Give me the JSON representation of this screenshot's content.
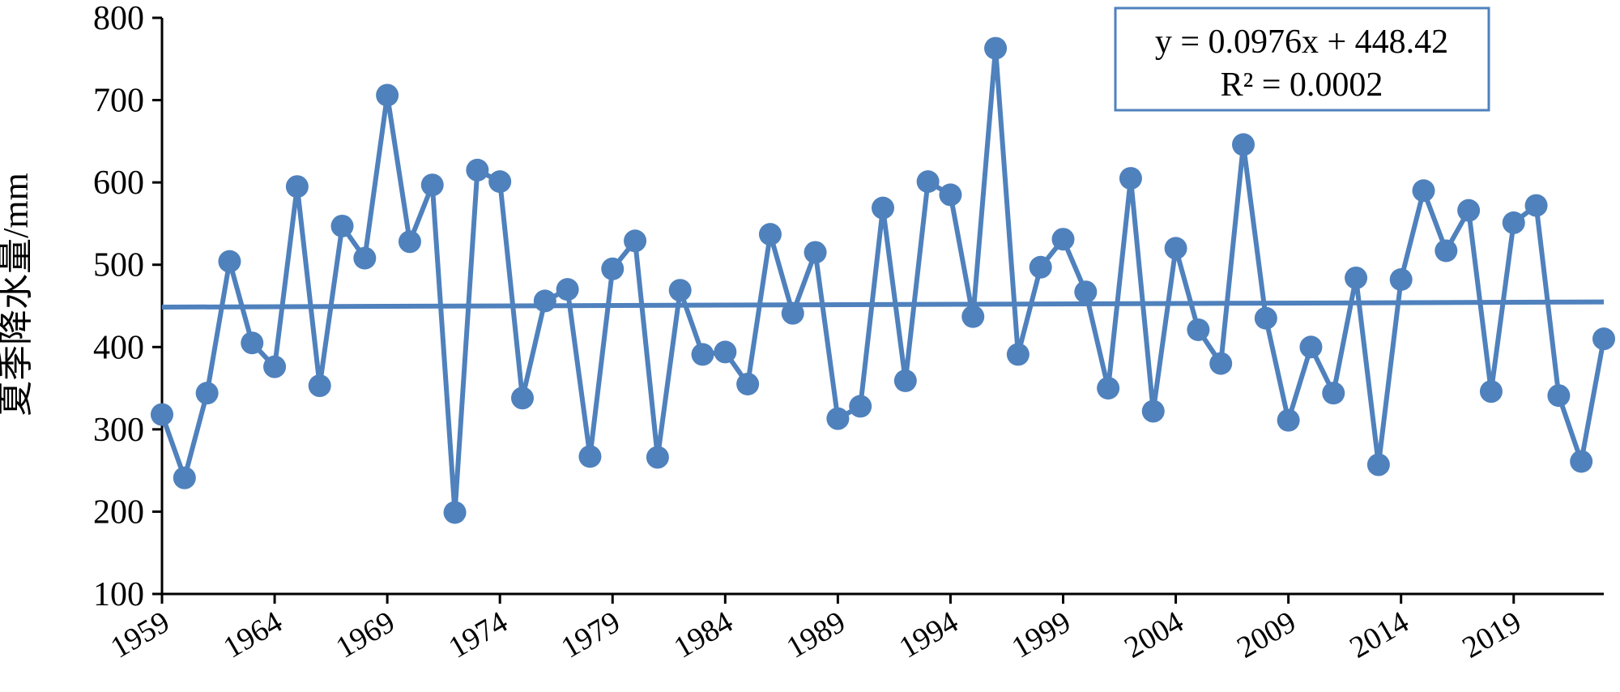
{
  "chart_data": {
    "type": "line",
    "ylabel": "夏季降水量/mm",
    "xlabel": "",
    "ylim": [
      100,
      800
    ],
    "yticks": [
      100,
      200,
      300,
      400,
      500,
      600,
      700,
      800
    ],
    "xlim": [
      1959,
      2023
    ],
    "xticks": [
      1959,
      1964,
      1969,
      1974,
      1979,
      1984,
      1989,
      1994,
      1999,
      2004,
      2009,
      2014,
      2019
    ],
    "grid": false,
    "colors": {
      "series": "#4f81bd",
      "trend": "#4f81bd",
      "box_border": "#4f81bd"
    },
    "series": [
      {
        "x": [
          1959,
          1960,
          1961,
          1962,
          1963,
          1964,
          1965,
          1966,
          1967,
          1968,
          1969,
          1970,
          1971,
          1972,
          1973,
          1974,
          1975,
          1976,
          1977,
          1978,
          1979,
          1980,
          1981,
          1982,
          1983,
          1984,
          1985,
          1986,
          1987,
          1988,
          1989,
          1990,
          1991,
          1992,
          1993,
          1994,
          1995,
          1996,
          1997,
          1998,
          1999,
          2000,
          2001,
          2002,
          2003,
          2004,
          2005,
          2006,
          2007,
          2008,
          2009,
          2010,
          2011,
          2012,
          2013,
          2014,
          2015,
          2016,
          2017,
          2018,
          2019,
          2020,
          2021,
          2022,
          2023
        ],
        "values": [
          318,
          241,
          344,
          504,
          405,
          376,
          595,
          353,
          547,
          508,
          706,
          528,
          597,
          199,
          615,
          601,
          338,
          456,
          470,
          267,
          495,
          529,
          266,
          469,
          391,
          394,
          355,
          537,
          441,
          515,
          313,
          328,
          569,
          359,
          601,
          585,
          437,
          763,
          391,
          497,
          531,
          467,
          350,
          605,
          322,
          520,
          421,
          380,
          646,
          435,
          311,
          400,
          344,
          484,
          257,
          482,
          590,
          517,
          566,
          346,
          551,
          572,
          341,
          261,
          410
        ]
      }
    ],
    "trendline": {
      "slope": 0.0976,
      "intercept": 448.42,
      "equation_label": "y = 0.0976x + 448.42",
      "r2_label": "R² = 0.0002"
    },
    "legend_placement": "top-right"
  }
}
